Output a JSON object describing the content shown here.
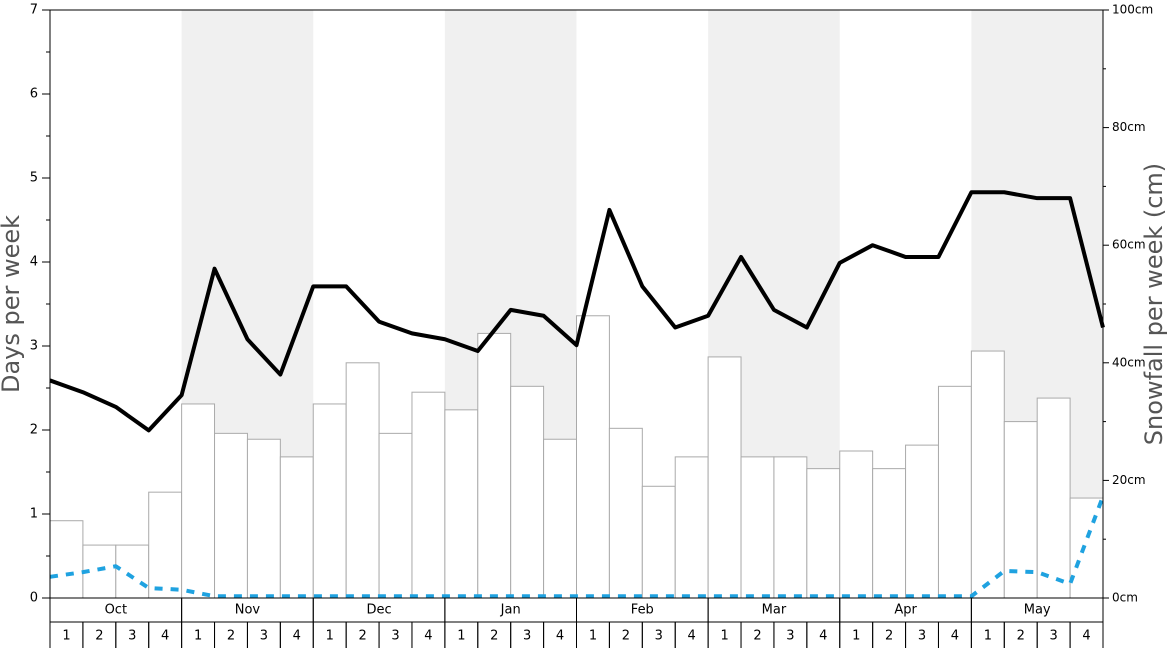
{
  "chart_data": {
    "type": "bar",
    "y_label": "Days per week",
    "y2_label": "Snowfall per week (cm)",
    "months": [
      "Oct",
      "Nov",
      "Dec",
      "Jan",
      "Feb",
      "Mar",
      "Apr",
      "May"
    ],
    "weeks": [
      "1",
      "2",
      "3",
      "4"
    ],
    "ylim": [
      0,
      7
    ],
    "yticks": [
      0,
      1,
      2,
      3,
      4,
      5,
      6,
      7
    ],
    "y2lim": [
      0,
      100
    ],
    "y2ticks": [
      {
        "value": 0,
        "label": "0cm"
      },
      {
        "value": 20,
        "label": "20cm"
      },
      {
        "value": 40,
        "label": "40cm"
      },
      {
        "value": 60,
        "label": "60cm"
      },
      {
        "value": 80,
        "label": "80cm"
      },
      {
        "value": 100,
        "label": "100cm"
      }
    ],
    "values": [
      0.92,
      0.63,
      0.63,
      1.26,
      2.31,
      1.96,
      1.89,
      1.68,
      2.31,
      2.8,
      1.96,
      2.45,
      2.24,
      3.15,
      2.52,
      1.89,
      3.36,
      2.02,
      1.33,
      1.68,
      2.87,
      1.68,
      1.68,
      1.54,
      1.75,
      1.54,
      1.82,
      2.52,
      2.94,
      2.1,
      2.38,
      1.19
    ],
    "color": "#ffffff",
    "series": [
      {
        "type": "line",
        "axis": "y2",
        "color": "#000000",
        "dashed": false,
        "values": [
          37,
          35,
          32.5,
          28.5,
          34.5,
          56,
          44,
          38,
          53,
          53,
          47,
          45,
          44,
          42,
          49,
          48,
          43,
          66,
          53,
          46,
          48,
          58,
          49,
          46,
          57,
          60,
          58,
          58,
          69,
          69,
          68,
          68,
          46
        ]
      },
      {
        "type": "line",
        "axis": "y2",
        "color": "#1fa2e0",
        "dashed": true,
        "values": [
          3.6,
          4.4,
          5.4,
          1.7,
          1.4,
          0.3,
          0.3,
          0.3,
          0.3,
          0.3,
          0.3,
          0.3,
          0.3,
          0.3,
          0.3,
          0.3,
          0.3,
          0.3,
          0.3,
          0.3,
          0.3,
          0.3,
          0.3,
          0.3,
          0.3,
          0.3,
          0.3,
          0.3,
          0.3,
          4.6,
          4.4,
          2.4,
          17.3
        ]
      }
    ]
  }
}
